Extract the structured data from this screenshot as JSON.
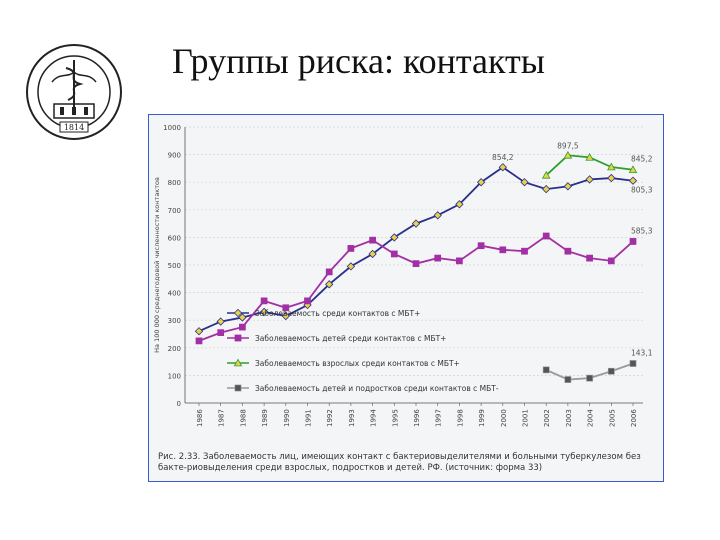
{
  "slide": {
    "title": "Группы риска: контакты"
  },
  "logo": {
    "year": "1814"
  },
  "chart_data": {
    "type": "line",
    "ylabel": "На 100 000 среднегодовой численности контактов",
    "ylim": [
      0,
      1000
    ],
    "yticks": [
      0,
      100,
      200,
      300,
      400,
      500,
      600,
      700,
      800,
      900,
      1000
    ],
    "categories": [
      "1986",
      "1987",
      "1988",
      "1989",
      "1990",
      "1991",
      "1992",
      "1993",
      "1994",
      "1995",
      "1996",
      "1997",
      "1998",
      "1999",
      "2000",
      "2001",
      "2002",
      "2003",
      "2004",
      "2005",
      "2006"
    ],
    "series": [
      {
        "name": "Заболеваемость среди контактов с МБТ+",
        "color": "#2a2f8a",
        "marker": "diamond",
        "marker_color": "#e8d24a",
        "values": [
          260,
          295,
          310,
          330,
          315,
          355,
          430,
          495,
          540,
          600,
          650,
          680,
          720,
          800,
          854.2,
          800,
          775,
          785,
          810,
          815,
          805.3
        ]
      },
      {
        "name": "Заболеваемость детей среди контактов с МБТ+",
        "color": "#a22fa3",
        "marker": "square",
        "marker_color": "#a22fa3",
        "values": [
          225,
          255,
          275,
          370,
          345,
          370,
          475,
          560,
          590,
          540,
          505,
          525,
          515,
          570,
          555,
          550,
          605,
          550,
          525,
          515,
          585.3
        ]
      },
      {
        "name": "Заболеваемость взрослых среди контактов с МБТ+",
        "color": "#2e9e2e",
        "marker": "triangle",
        "marker_color": "#e8d24a",
        "values": [
          null,
          null,
          null,
          null,
          null,
          null,
          null,
          null,
          null,
          null,
          null,
          null,
          null,
          null,
          null,
          null,
          825,
          897.5,
          890,
          855,
          845.2
        ]
      },
      {
        "name": "Заболеваемость детей и подростков среди контактов с МБТ-",
        "color": "#9a9a9a",
        "marker": "square",
        "marker_color": "#555555",
        "values": [
          null,
          null,
          null,
          null,
          null,
          null,
          null,
          null,
          null,
          null,
          null,
          null,
          null,
          null,
          null,
          null,
          120,
          85,
          90,
          115,
          143.1
        ]
      }
    ],
    "data_labels": [
      {
        "series": 0,
        "index": 14,
        "text": "854,2"
      },
      {
        "series": 2,
        "index": 17,
        "text": "897,5"
      },
      {
        "series": 2,
        "index": 20,
        "text": "845,2"
      },
      {
        "series": 0,
        "index": 20,
        "text": "805,3"
      },
      {
        "series": 1,
        "index": 20,
        "text": "585,3"
      },
      {
        "series": 3,
        "index": 20,
        "text": "143,1"
      }
    ],
    "caption": "Рис. 2.33. Заболеваемость лиц, имеющих контакт с бактериовыделителями и больными туберкулезом без бакте-риовыделения среди взрослых, подростков и детей. РФ. (источник: форма 33)",
    "legend_position": "lower-center"
  }
}
